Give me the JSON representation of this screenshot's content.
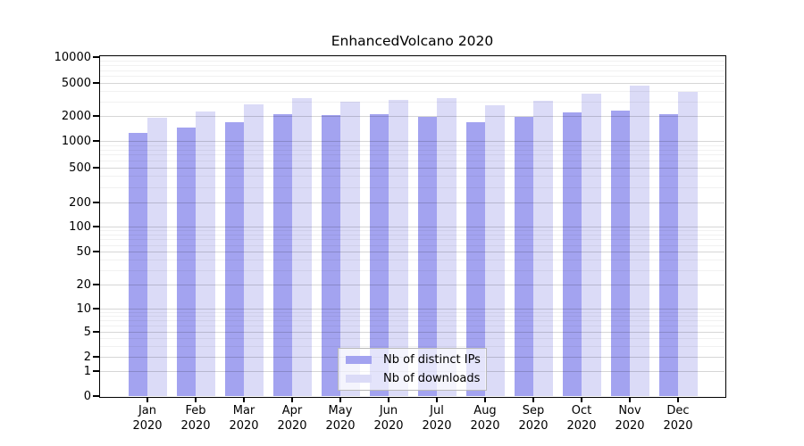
{
  "chart_data": {
    "type": "bar",
    "title": "EnhancedVolcano 2020",
    "categories": [
      "Jan 2020",
      "Feb 2020",
      "Mar 2020",
      "Apr 2020",
      "May 2020",
      "Jun 2020",
      "Jul 2020",
      "Aug 2020",
      "Sep 2020",
      "Oct 2020",
      "Nov 2020",
      "Dec 2020"
    ],
    "series": [
      {
        "name": "Nb of distinct IPs",
        "color": "#a3a3f0",
        "values": [
          1250,
          1450,
          1700,
          2100,
          2050,
          2100,
          1950,
          1700,
          1950,
          2200,
          2300,
          2100
        ]
      },
      {
        "name": "Nb of downloads",
        "color": "#dbdbf7",
        "values": [
          1900,
          2250,
          2750,
          3300,
          3000,
          3150,
          3300,
          2700,
          3050,
          3750,
          4600,
          3900
        ]
      }
    ],
    "y_axis": {
      "scale": "log-like (0 pinned at baseline)",
      "ticks": [
        0,
        1,
        2,
        5,
        10,
        20,
        50,
        100,
        200,
        500,
        1000,
        2000,
        5000,
        10000
      ],
      "range": [
        0,
        10000
      ],
      "minor_gridline_multiples": [
        3,
        4,
        6,
        7,
        8,
        9
      ]
    },
    "x_axis": {
      "label_line1": "month",
      "label_line2": "year",
      "year": "2020"
    },
    "grid": "horizontal major + minor, drawn over bars",
    "legend_position": "bottom-center inside plot"
  }
}
